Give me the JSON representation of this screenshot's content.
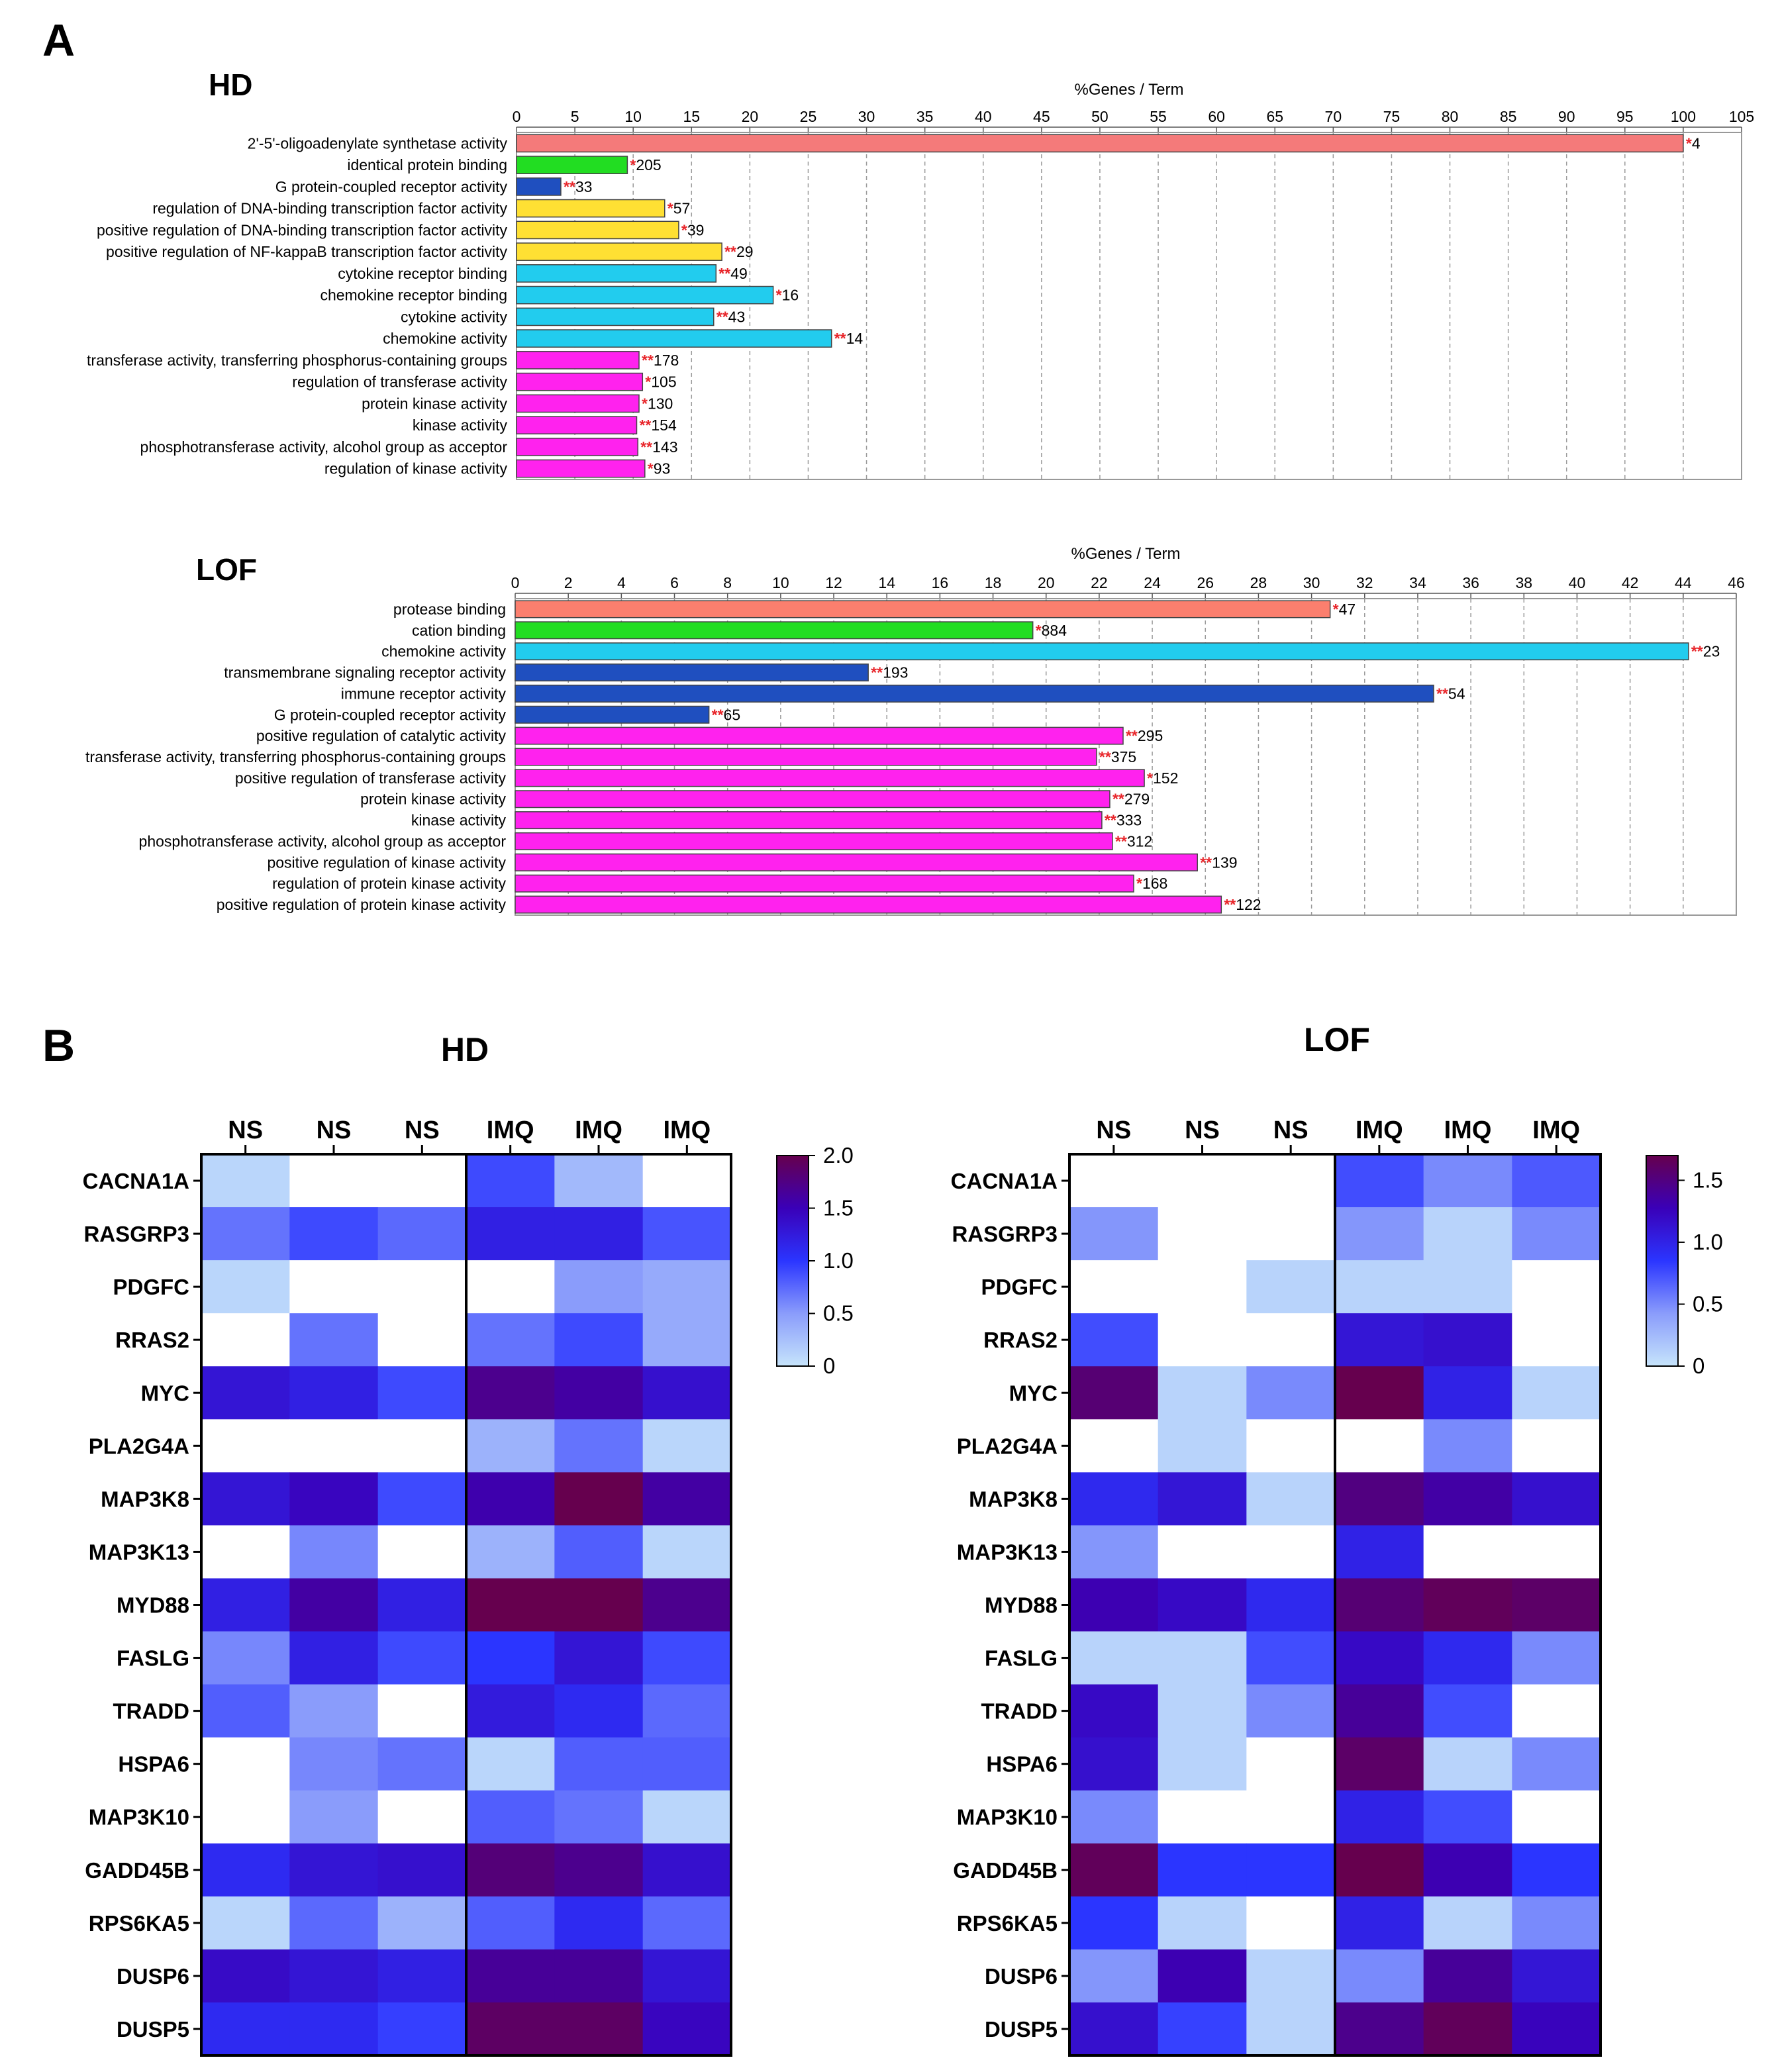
{
  "panel_labels": [
    "A",
    "B"
  ],
  "chart_data": [
    {
      "type": "bar",
      "orientation": "horizontal",
      "panel": "A",
      "title": "HD",
      "xlabel": "%Genes / Term",
      "xlim": [
        0,
        105
      ],
      "xticks": [
        0,
        5,
        10,
        15,
        20,
        25,
        30,
        35,
        40,
        45,
        50,
        55,
        60,
        65,
        70,
        75,
        80,
        85,
        90,
        95,
        100,
        105
      ],
      "grid": true,
      "categories": [
        "2'-5'-oligoadenylate synthetase activity",
        "identical protein binding",
        "G protein-coupled receptor activity",
        "regulation of DNA-binding transcription factor activity",
        "positive regulation of DNA-binding transcription factor activity",
        "positive regulation of NF-kappaB transcription factor activity",
        "cytokine receptor binding",
        "chemokine receptor binding",
        "cytokine activity",
        "chemokine activity",
        "transferase activity, transferring phosphorus-containing groups",
        "regulation of transferase activity",
        "protein kinase activity",
        "kinase activity",
        "phosphotransferase activity, alcohol group as acceptor",
        "regulation of kinase activity"
      ],
      "values": [
        100,
        9.5,
        3.8,
        12.7,
        13.9,
        17.6,
        17.1,
        22.0,
        16.9,
        27.0,
        10.5,
        10.8,
        10.5,
        10.3,
        10.4,
        11.0
      ],
      "significance": [
        "*",
        "*",
        "**",
        "*",
        "*",
        "**",
        "**",
        "*",
        "**",
        "**",
        "**",
        "*",
        "*",
        "**",
        "**",
        "*"
      ],
      "gene_counts": [
        "4",
        "205",
        "33",
        "57",
        "39",
        "29",
        "49",
        "16",
        "43",
        "14",
        "178",
        "105",
        "130",
        "154",
        "143",
        "93"
      ],
      "colors": [
        "#f47a7a",
        "#22dd22",
        "#1f4fbf",
        "#ffe033",
        "#ffe033",
        "#ffe033",
        "#22ccee",
        "#22ccee",
        "#22ccee",
        "#22ccee",
        "#ff22ee",
        "#ff22ee",
        "#ff22ee",
        "#ff22ee",
        "#ff22ee",
        "#ff22ee"
      ],
      "legend": null
    },
    {
      "type": "bar",
      "orientation": "horizontal",
      "panel": "A",
      "title": "LOF",
      "xlabel": "%Genes / Term",
      "xlim": [
        0,
        46
      ],
      "xticks": [
        0,
        2,
        4,
        6,
        8,
        10,
        12,
        14,
        16,
        18,
        20,
        22,
        24,
        26,
        28,
        30,
        32,
        34,
        36,
        38,
        40,
        42,
        44,
        46
      ],
      "grid": true,
      "categories": [
        "protease binding",
        "cation binding",
        "chemokine activity",
        "transmembrane signaling receptor activity",
        "immune receptor activity",
        "G protein-coupled receptor activity",
        "positive regulation of catalytic activity",
        "transferase activity, transferring phosphorus-containing groups",
        "positive regulation of transferase activity",
        "protein kinase activity",
        "kinase activity",
        "phosphotransferase activity, alcohol group as acceptor",
        "positive regulation of kinase activity",
        "regulation of protein kinase activity",
        "positive regulation of protein kinase activity"
      ],
      "values": [
        30.7,
        19.5,
        44.2,
        13.3,
        34.6,
        7.3,
        22.9,
        21.9,
        23.7,
        22.4,
        22.1,
        22.5,
        25.7,
        23.3,
        26.6
      ],
      "significance": [
        "*",
        "*",
        "**",
        "**",
        "**",
        "**",
        "**",
        "**",
        "*",
        "**",
        "**",
        "**",
        "**",
        "*",
        "**"
      ],
      "gene_counts": [
        "47",
        "884",
        "23",
        "193",
        "54",
        "65",
        "295",
        "375",
        "152",
        "279",
        "333",
        "312",
        "139",
        "168",
        "122"
      ],
      "colors": [
        "#fb7f6e",
        "#22dd22",
        "#22ccee",
        "#1f4fbf",
        "#1f4fbf",
        "#1f4fbf",
        "#ff22ee",
        "#ff22ee",
        "#ff22ee",
        "#ff22ee",
        "#ff22ee",
        "#ff22ee",
        "#ff22ee",
        "#ff22ee",
        "#ff22ee"
      ],
      "legend": null
    },
    {
      "type": "heatmap",
      "panel": "B",
      "title": "HD",
      "columns": [
        "NS",
        "NS",
        "NS",
        "IMQ",
        "IMQ",
        "IMQ"
      ],
      "rows": [
        "CACNA1A",
        "RASGRP3",
        "PDGFC",
        "RRAS2",
        "MYC",
        "PLA2G4A",
        "MAP3K8",
        "MAP3K13",
        "MYD88",
        "FASLG",
        "TRADD",
        "HSPA6",
        "MAP3K10",
        "GADD45B",
        "RPS6KA5",
        "DUSP6",
        "DUSP5"
      ],
      "values": [
        [
          0.1,
          null,
          null,
          0.9,
          0.3,
          null
        ],
        [
          0.7,
          0.9,
          0.75,
          1.2,
          1.2,
          0.85
        ],
        [
          0.1,
          null,
          null,
          null,
          0.5,
          0.4
        ],
        [
          null,
          0.7,
          null,
          0.7,
          0.9,
          0.4
        ],
        [
          1.3,
          1.2,
          0.9,
          1.7,
          1.6,
          1.35
        ],
        [
          null,
          null,
          null,
          0.35,
          0.7,
          0.1
        ],
        [
          1.3,
          1.45,
          0.9,
          1.55,
          2.0,
          1.6
        ],
        [
          null,
          0.6,
          null,
          0.35,
          0.8,
          0.1
        ],
        [
          1.2,
          1.6,
          1.2,
          2.0,
          2.0,
          1.7
        ],
        [
          0.6,
          1.2,
          0.9,
          1.0,
          1.3,
          0.9
        ],
        [
          0.8,
          0.5,
          null,
          1.25,
          1.1,
          0.75
        ],
        [
          null,
          0.6,
          0.7,
          0.1,
          0.8,
          0.8
        ],
        [
          null,
          0.5,
          null,
          0.8,
          0.7,
          0.1
        ],
        [
          1.1,
          1.3,
          1.35,
          1.8,
          1.7,
          1.35
        ],
        [
          0.1,
          0.75,
          0.35,
          0.8,
          1.1,
          0.75
        ],
        [
          1.4,
          1.3,
          1.2,
          1.65,
          1.65,
          1.3
        ],
        [
          1.1,
          1.1,
          0.95,
          1.9,
          1.9,
          1.45
        ]
      ],
      "group_divider_after_column": 3,
      "colorbar": {
        "min": 0,
        "max": 2.0,
        "ticks": [
          "2.0",
          "1.5",
          "1.0",
          "0.5",
          "0"
        ]
      }
    },
    {
      "type": "heatmap",
      "panel": "B",
      "title": "LOF",
      "columns": [
        "NS",
        "NS",
        "NS",
        "IMQ",
        "IMQ",
        "IMQ"
      ],
      "rows": [
        "CACNA1A",
        "RASGRP3",
        "PDGFC",
        "RRAS2",
        "MYC",
        "PLA2G4A",
        "MAP3K8",
        "MAP3K13",
        "MYD88",
        "FASLG",
        "TRADD",
        "HSPA6",
        "MAP3K10",
        "GADD45B",
        "RPS6KA5",
        "DUSP6",
        "DUSP5"
      ],
      "values": [
        [
          null,
          null,
          null,
          0.75,
          0.5,
          0.7
        ],
        [
          0.45,
          null,
          null,
          0.45,
          0.1,
          0.5
        ],
        [
          null,
          null,
          0.1,
          0.1,
          0.1,
          null
        ],
        [
          0.75,
          null,
          null,
          1.1,
          1.15,
          null
        ],
        [
          1.55,
          0.1,
          0.5,
          1.7,
          1.0,
          0.1
        ],
        [
          null,
          0.1,
          null,
          null,
          0.5,
          null
        ],
        [
          0.95,
          1.1,
          0.1,
          1.5,
          1.35,
          1.15
        ],
        [
          0.45,
          null,
          null,
          1.0,
          null,
          null
        ],
        [
          1.3,
          1.2,
          0.95,
          1.55,
          1.65,
          1.6
        ],
        [
          0.1,
          0.1,
          0.75,
          1.2,
          0.95,
          0.5
        ],
        [
          1.2,
          0.1,
          0.5,
          1.4,
          0.75,
          null
        ],
        [
          1.15,
          0.1,
          null,
          1.6,
          0.1,
          0.5
        ],
        [
          0.5,
          null,
          null,
          1.0,
          0.75,
          null
        ],
        [
          1.65,
          0.85,
          0.85,
          1.75,
          1.3,
          0.85
        ],
        [
          0.85,
          0.1,
          null,
          1.0,
          0.1,
          0.5
        ],
        [
          0.45,
          1.3,
          0.1,
          0.5,
          1.4,
          1.1
        ],
        [
          1.15,
          0.8,
          0.1,
          1.45,
          1.65,
          1.25
        ]
      ],
      "group_divider_after_column": 3,
      "colorbar": {
        "min": 0,
        "max": 1.7,
        "ticks": [
          "1.5",
          "1.0",
          "0.5",
          "0"
        ]
      }
    }
  ]
}
